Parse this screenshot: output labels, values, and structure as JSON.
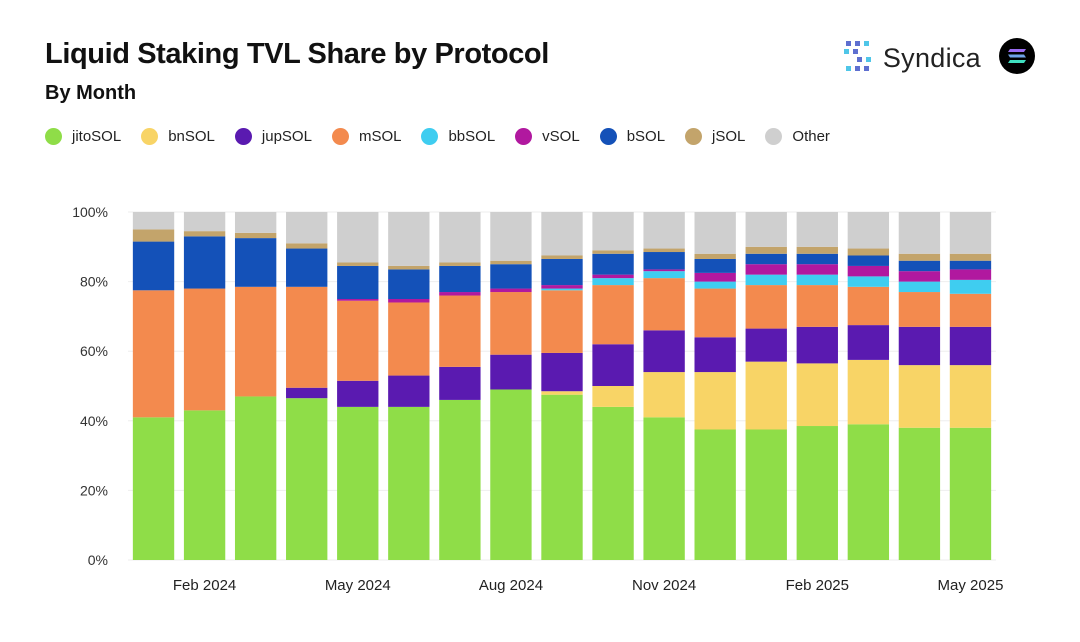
{
  "header": {
    "title": "Liquid Staking TVL Share by Protocol",
    "subtitle": "By Month",
    "brand_name": "Syndica"
  },
  "colors": {
    "jitoSOL": "#8fdd48",
    "bnSOL": "#f8d466",
    "jupSOL": "#5a1ab0",
    "mSOL": "#f38a4e",
    "bbSOL": "#3fcdf0",
    "vSOL": "#b1189f",
    "bSOL": "#1451b8",
    "jSOL": "#c3a46b",
    "Other": "#cfcfcf"
  },
  "chart_data": {
    "type": "bar",
    "stacked": true,
    "title": "Liquid Staking TVL Share by Protocol",
    "subtitle": "By Month",
    "xlabel": "",
    "ylabel": "",
    "ylim": [
      0,
      100
    ],
    "yticks": [
      "0%",
      "20%",
      "40%",
      "60%",
      "80%",
      "100%"
    ],
    "legend_position": "top",
    "categories": [
      "Jan 2024",
      "Feb 2024",
      "Mar 2024",
      "Apr 2024",
      "May 2024",
      "Jun 2024",
      "Jul 2024",
      "Aug 2024",
      "Sep 2024",
      "Oct 2024",
      "Nov 2024",
      "Dec 2024",
      "Jan 2025",
      "Feb 2025",
      "Mar 2025",
      "Apr 2025",
      "May 2025"
    ],
    "xtick_labels": [
      {
        "index": 1,
        "label": "Feb 2024"
      },
      {
        "index": 4,
        "label": "May 2024"
      },
      {
        "index": 7,
        "label": "Aug 2024"
      },
      {
        "index": 10,
        "label": "Nov 2024"
      },
      {
        "index": 13,
        "label": "Feb 2025"
      },
      {
        "index": 16,
        "label": "May 2025"
      }
    ],
    "series": [
      {
        "name": "jitoSOL",
        "values": [
          41,
          43,
          47,
          46.5,
          44,
          44,
          46,
          49,
          47.5,
          44,
          41,
          37.5,
          37.5,
          38.5,
          39,
          38,
          38
        ]
      },
      {
        "name": "bnSOL",
        "values": [
          0,
          0,
          0,
          0,
          0,
          0,
          0,
          0,
          1,
          6,
          13,
          16.5,
          19.5,
          18,
          18.5,
          18,
          18
        ]
      },
      {
        "name": "jupSOL",
        "values": [
          0,
          0,
          0,
          3,
          7.5,
          9,
          9.5,
          10,
          11,
          12,
          12,
          10,
          9.5,
          10.5,
          10,
          11,
          11
        ]
      },
      {
        "name": "mSOL",
        "values": [
          36.5,
          35,
          31.5,
          29,
          23,
          21,
          20.5,
          18,
          18,
          17,
          15,
          14,
          12.5,
          12,
          11,
          10,
          9.5
        ]
      },
      {
        "name": "bbSOL",
        "values": [
          0,
          0,
          0,
          0,
          0,
          0,
          0,
          0,
          0.5,
          2,
          2,
          2,
          3,
          3,
          3,
          3,
          4
        ]
      },
      {
        "name": "vSOL",
        "values": [
          0,
          0,
          0,
          0,
          0.5,
          1,
          1,
          1,
          1,
          1,
          0.5,
          2.5,
          3,
          3,
          3,
          3,
          3
        ]
      },
      {
        "name": "bSOL",
        "values": [
          14,
          15,
          14,
          11,
          9.5,
          8.5,
          7.5,
          7,
          7.5,
          6,
          5,
          4,
          3,
          3,
          3,
          3,
          2.5
        ]
      },
      {
        "name": "jSOL",
        "values": [
          3.5,
          1.5,
          1.5,
          1.5,
          1,
          1,
          1,
          1,
          1,
          1,
          1,
          1.5,
          2,
          2,
          2,
          2,
          2
        ]
      },
      {
        "name": "Other",
        "values": [
          5,
          5.5,
          6,
          9,
          14.5,
          15.5,
          14.5,
          14,
          12.5,
          11,
          10.5,
          12,
          10,
          10,
          10.5,
          12,
          12
        ]
      }
    ]
  }
}
